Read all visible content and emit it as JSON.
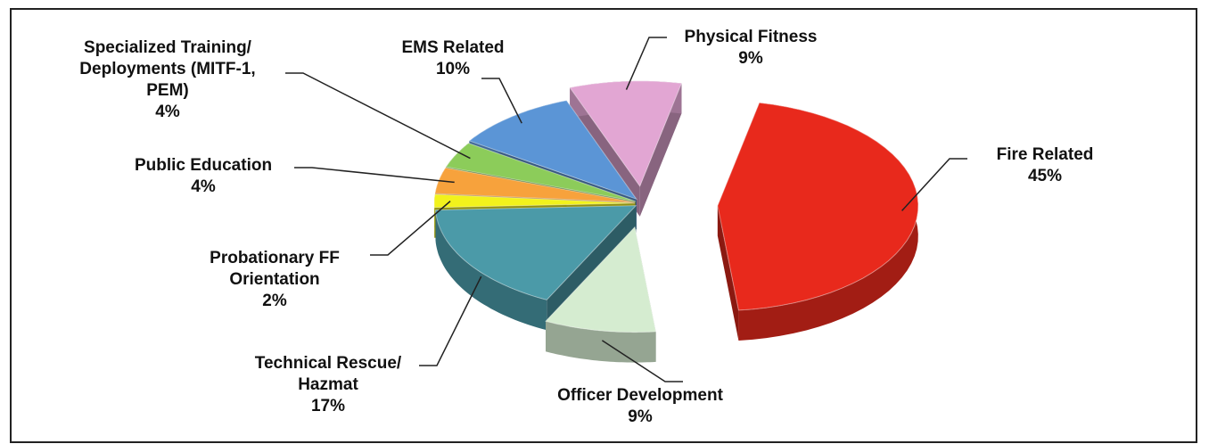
{
  "chart_data": {
    "type": "pie",
    "categories": [
      "Fire Related",
      "Officer Development",
      "Technical Rescue/ Hazmat",
      "Probationary FF Orientation",
      "Public Education",
      "Specialized Training/ Deployments (MITF-1, PEM)",
      "EMS Related",
      "Physical Fitness"
    ],
    "values": [
      45,
      9,
      17,
      2,
      4,
      4,
      10,
      9
    ],
    "value_labels": [
      "45%",
      "9%",
      "17%",
      "2%",
      "4%",
      "4%",
      "10%",
      "9%"
    ],
    "colors": [
      "#e8291c",
      "#d5ecd0",
      "#4b9aa8",
      "#f2f21c",
      "#f7a23c",
      "#8ccc5a",
      "#5b95d6",
      "#e2a6d3"
    ]
  }
}
